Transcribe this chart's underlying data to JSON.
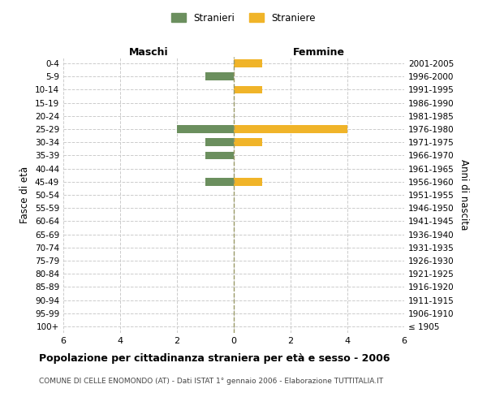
{
  "age_groups": [
    "100+",
    "95-99",
    "90-94",
    "85-89",
    "80-84",
    "75-79",
    "70-74",
    "65-69",
    "60-64",
    "55-59",
    "50-54",
    "45-49",
    "40-44",
    "35-39",
    "30-34",
    "25-29",
    "20-24",
    "15-19",
    "10-14",
    "5-9",
    "0-4"
  ],
  "birth_years": [
    "≤ 1905",
    "1906-1910",
    "1911-1915",
    "1916-1920",
    "1921-1925",
    "1926-1930",
    "1931-1935",
    "1936-1940",
    "1941-1945",
    "1946-1950",
    "1951-1955",
    "1956-1960",
    "1961-1965",
    "1966-1970",
    "1971-1975",
    "1976-1980",
    "1981-1985",
    "1986-1990",
    "1991-1995",
    "1996-2000",
    "2001-2005"
  ],
  "maschi": [
    0,
    0,
    0,
    0,
    0,
    0,
    0,
    0,
    0,
    0,
    0,
    1,
    0,
    1,
    1,
    2,
    0,
    0,
    0,
    1,
    0
  ],
  "femmine": [
    0,
    0,
    0,
    0,
    0,
    0,
    0,
    0,
    0,
    0,
    0,
    1,
    0,
    0,
    1,
    4,
    0,
    0,
    1,
    0,
    1
  ],
  "color_maschi": "#6b8f5e",
  "color_femmine": "#f0b429",
  "title": "Popolazione per cittadinanza straniera per età e sesso - 2006",
  "subtitle": "COMUNE DI CELLE ENOMONDO (AT) - Dati ISTAT 1° gennaio 2006 - Elaborazione TUTTITALIA.IT",
  "ylabel_left": "Fasce di età",
  "ylabel_right": "Anni di nascita",
  "xlabel_left": "Maschi",
  "xlabel_right": "Femmine",
  "legend_maschi": "Stranieri",
  "legend_femmine": "Straniere",
  "xlim": 6,
  "bg_color": "#ffffff",
  "grid_color": "#cccccc"
}
